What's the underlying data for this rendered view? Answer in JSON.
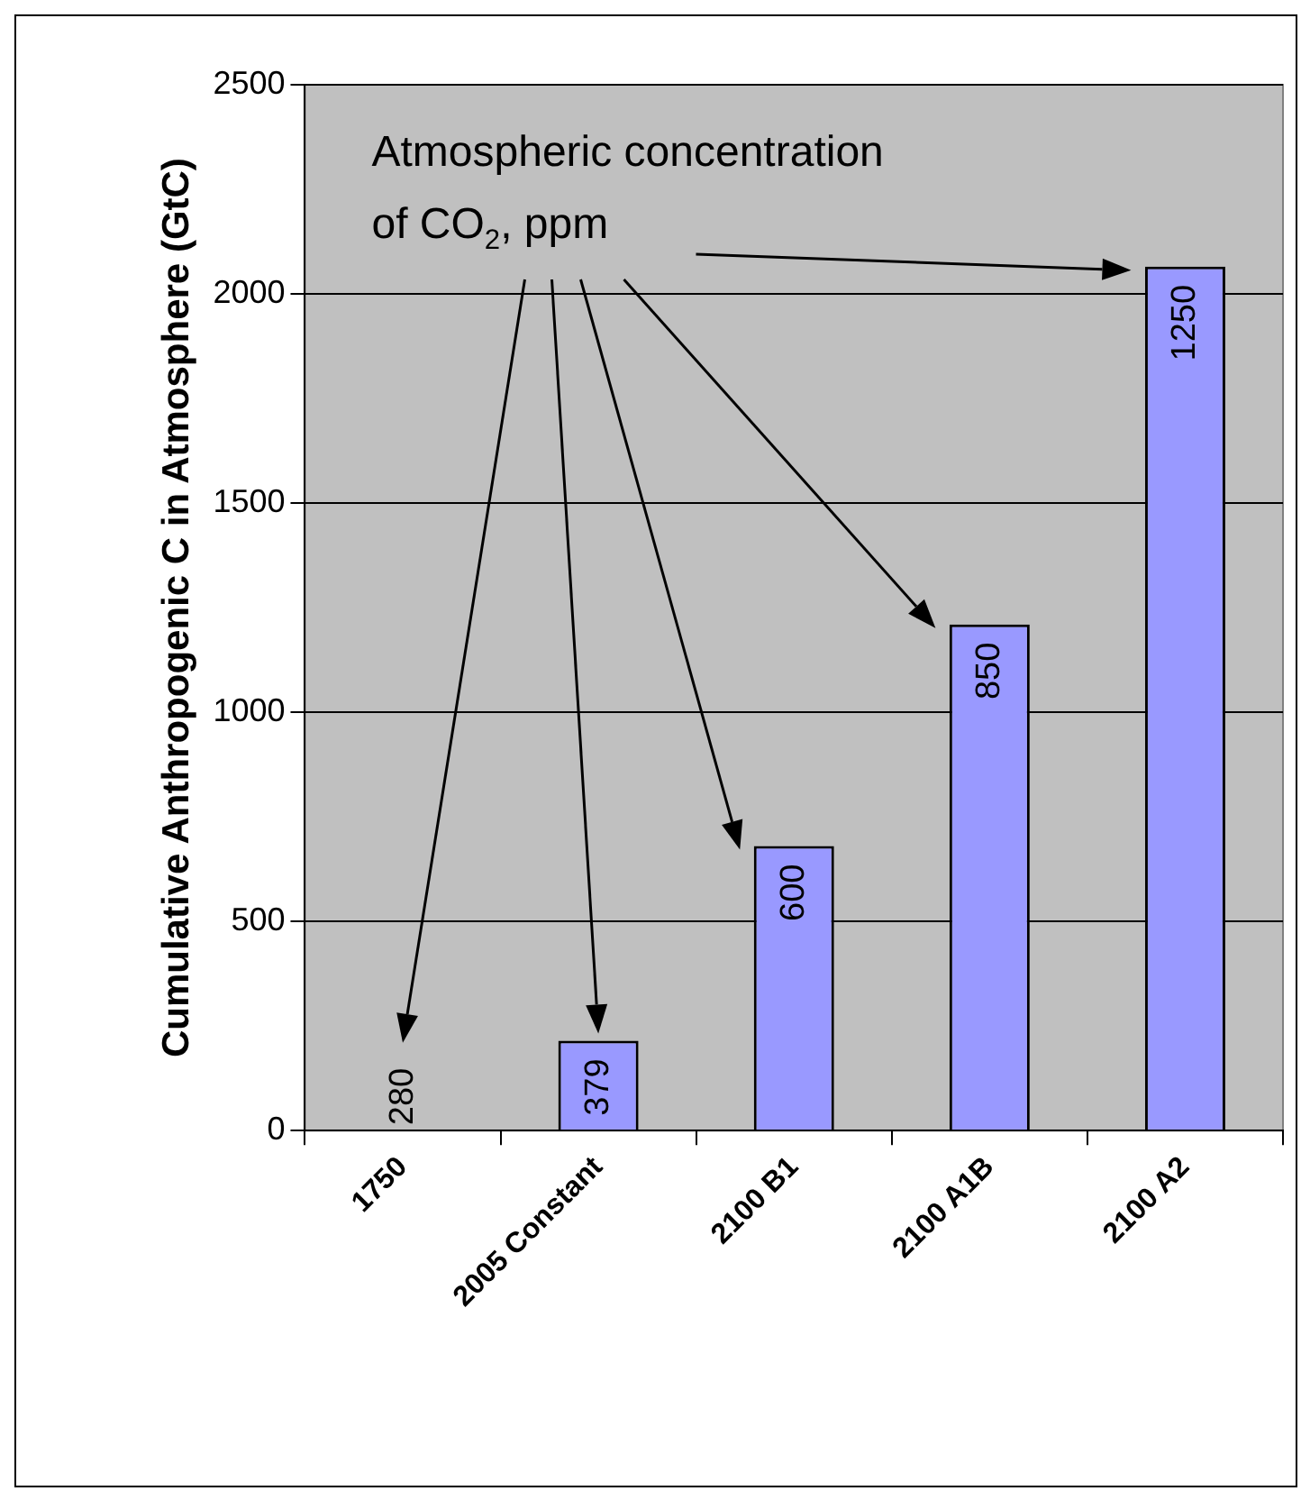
{
  "chart_data": {
    "type": "bar",
    "ylabel": "Cumulative Anthropogenic C in Atmosphere (GtC)",
    "categories": [
      "1750",
      "2005 Constant",
      "2100 B1",
      "2100 A1B",
      "2100 A2"
    ],
    "values": [
      0,
      215,
      680,
      1210,
      2065
    ],
    "color": "#9999ff",
    "ylim": [
      0,
      2500
    ],
    "yticks": [
      0,
      500,
      1000,
      1500,
      2000,
      2500
    ],
    "grid": "y",
    "annotations": [
      "Atmospheric concentration of CO$_{2}$, ppm",
      "280",
      "379",
      "600",
      "850",
      "1250"
    ],
    "legend": false
  }
}
